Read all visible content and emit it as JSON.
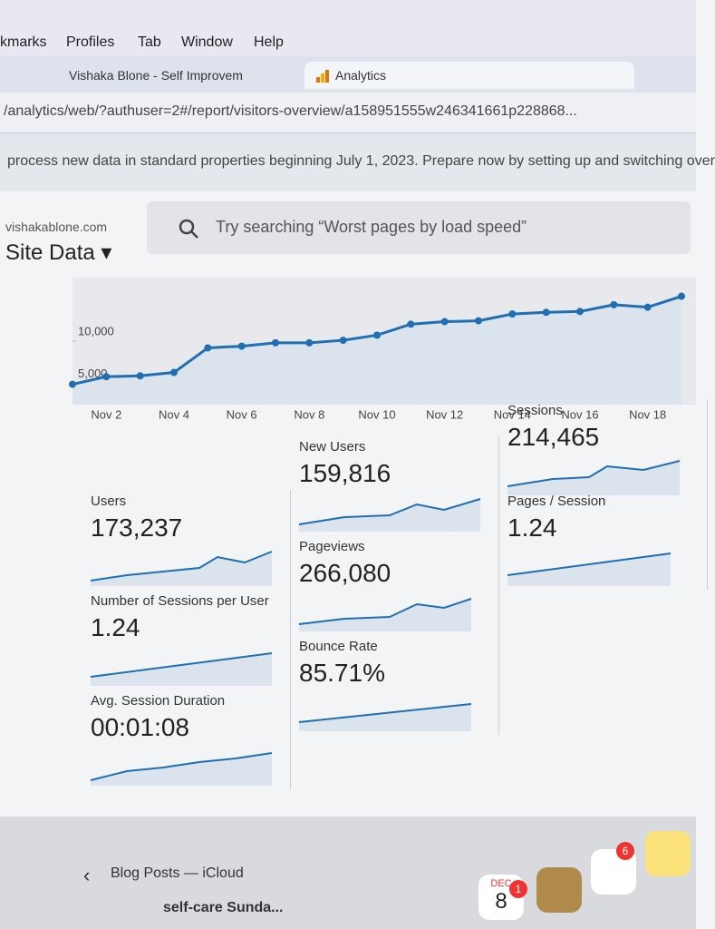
{
  "menu": [
    "kmarks",
    "Profiles",
    "Tab",
    "Window",
    "Help"
  ],
  "tabs": [
    "Vishaka Blone - Self Improvem",
    "Analytics"
  ],
  "url": "/analytics/web/?authuser=2#/report/visitors-overview/a158951555w246341661p228868...",
  "banner": "process new data in standard properties beginning July 1, 2023. Prepare now by setting up and switching over",
  "account": {
    "site": "vishakablone.com",
    "view": "Site Data"
  },
  "search": "Try searching “Worst pages by load speed”",
  "chart_data": {
    "type": "line",
    "categories": [
      null,
      "Nov 2",
      null,
      "Nov 4",
      null,
      "Nov 6",
      null,
      "Nov 8",
      null,
      "Nov 10",
      null,
      "Nov 12",
      null,
      "Nov 14",
      null,
      "Nov 16",
      null,
      "Nov 18",
      null
    ],
    "series": [
      {
        "name": "Users",
        "color": "#1f6fb2",
        "values": [
          4900,
          5800,
          5900,
          6300,
          9200,
          9400,
          9800,
          9800,
          10100,
          10700,
          12000,
          12300,
          12400,
          13200,
          13400,
          13500,
          14300,
          14000,
          15300
        ]
      }
    ],
    "ylim": [
      2500,
      17500
    ],
    "yticks": [
      {
        "value": 5000,
        "label": "5,000"
      },
      {
        "value": 10000,
        "label": "10,000"
      }
    ],
    "grid": false
  },
  "metrics": [
    {
      "label": "Users",
      "value": "173,237"
    },
    {
      "label": "New Users",
      "value": "159,816"
    },
    {
      "label": "Sessions",
      "value": "214,465"
    },
    {
      "label": "Number of Sessions per User",
      "value": "1.24"
    },
    {
      "label": "Pageviews",
      "value": "266,080"
    },
    {
      "label": "Pages / Session",
      "value": "1.24"
    },
    {
      "label": "Avg. Session Duration",
      "value": "00:01:08"
    },
    {
      "label": "Bounce Rate",
      "value": "85.71%"
    }
  ],
  "sidebar": [
    "Blog Posts — iCloud",
    "self-care Sunda..."
  ],
  "dock": {
    "month": "DEC",
    "day": "8",
    "badges": [
      "1",
      "6"
    ]
  }
}
